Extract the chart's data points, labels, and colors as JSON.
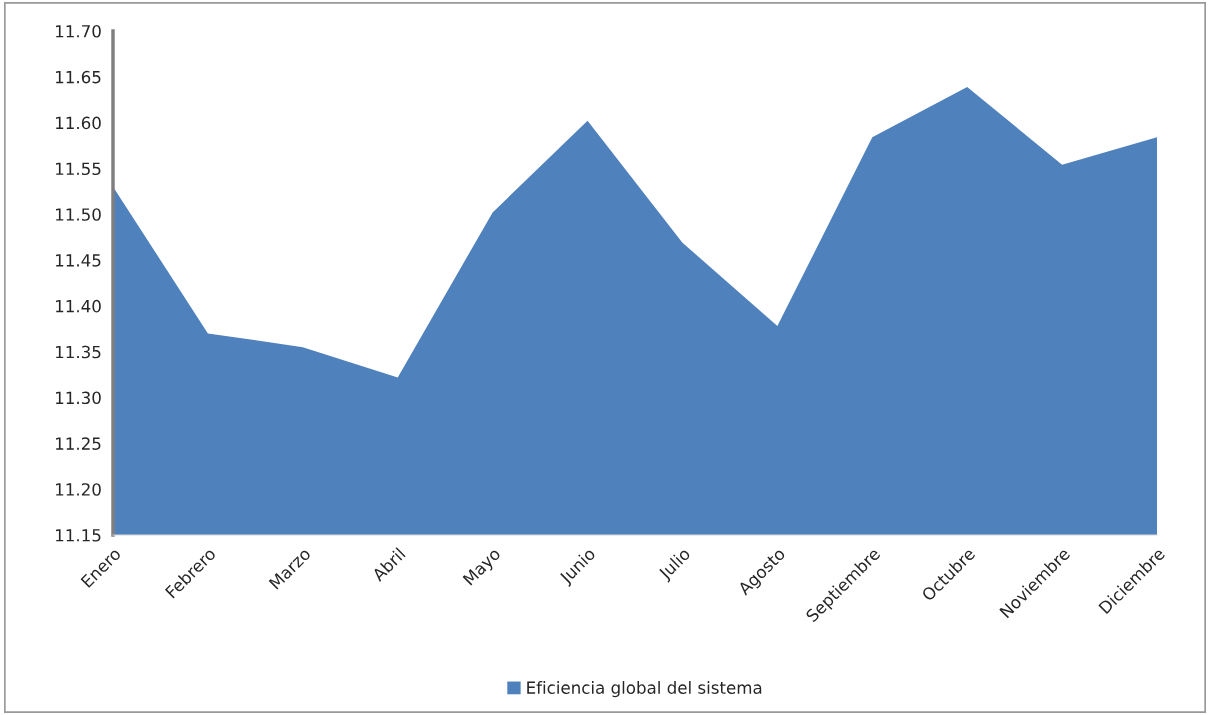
{
  "chart_data": {
    "type": "area",
    "categories": [
      "Enero",
      "Febrero",
      "Marzo",
      "Abril",
      "Mayo",
      "Junio",
      "Julio",
      "Agosto",
      "Septiembre",
      "Octubre",
      "Noviembre",
      "Diciembre"
    ],
    "series": [
      {
        "name": "Eficiencia global del sistema",
        "color": "#4f81bd",
        "values": [
          11.53,
          11.37,
          11.355,
          11.322,
          11.502,
          11.602,
          11.469,
          11.378,
          11.584,
          11.639,
          11.554,
          11.584
        ]
      }
    ],
    "ylim": [
      11.15,
      11.7
    ],
    "yticks": [
      {
        "value": 11.15,
        "label": "11.15"
      },
      {
        "value": 11.2,
        "label": "11.20"
      },
      {
        "value": 11.25,
        "label": "11.25"
      },
      {
        "value": 11.3,
        "label": "11.30"
      },
      {
        "value": 11.35,
        "label": "11.35"
      },
      {
        "value": 11.4,
        "label": "11.40"
      },
      {
        "value": 11.45,
        "label": "11.45"
      },
      {
        "value": 11.5,
        "label": "11.50"
      },
      {
        "value": 11.55,
        "label": "11.55"
      },
      {
        "value": 11.6,
        "label": "11.60"
      },
      {
        "value": 11.65,
        "label": "11.65"
      },
      {
        "value": 11.7,
        "label": "11.70"
      }
    ],
    "grid": false,
    "legend": "bottom"
  }
}
